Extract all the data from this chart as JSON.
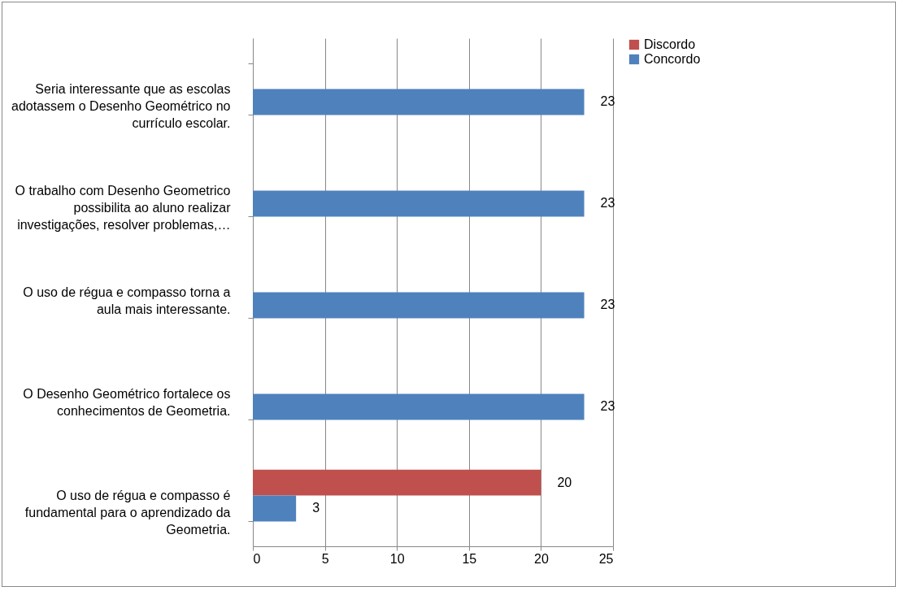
{
  "chart_data": {
    "type": "bar",
    "orientation": "horizontal",
    "categories": [
      "Seria interessante que as escolas adotassem o Desenho Geométrico no currículo escolar.",
      "O trabalho com Desenho Geometrico possibilita ao aluno realizar investigações, resolver problemas,…",
      "O uso de régua e compasso torna a aula mais interessante.",
      "O Desenho Geométrico fortalece os conhecimentos de Geometria.",
      "O uso de régua e compasso é fundamental para o aprendizado da Geometria."
    ],
    "series": [
      {
        "name": "Discordo",
        "color": "#c0504d",
        "values": [
          null,
          null,
          null,
          null,
          20
        ]
      },
      {
        "name": "Concordo",
        "color": "#4f81bd",
        "values": [
          23,
          23,
          23,
          23,
          3
        ]
      }
    ],
    "xlim": [
      0,
      25
    ],
    "xticks": [
      0,
      5,
      10,
      15,
      20,
      25
    ],
    "grid": "x",
    "legend": "right",
    "data_labels": true
  }
}
